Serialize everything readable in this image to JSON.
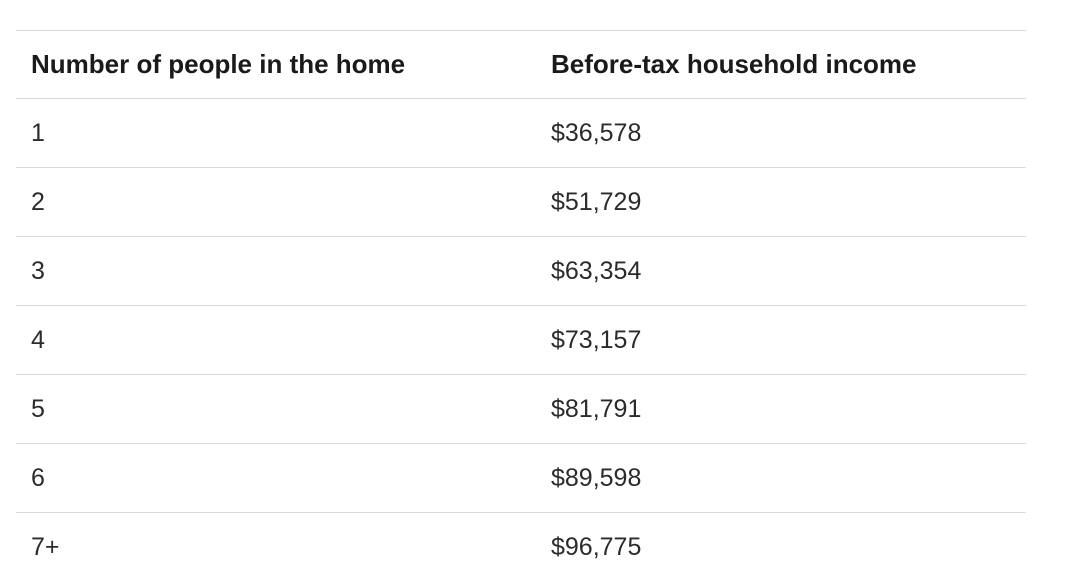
{
  "table": {
    "headers": {
      "people": "Number of people in the home",
      "income": "Before-tax household income"
    },
    "rows": [
      {
        "people": "1",
        "income": "$36,578"
      },
      {
        "people": "2",
        "income": "$51,729"
      },
      {
        "people": "3",
        "income": "$63,354"
      },
      {
        "people": "4",
        "income": "$73,157"
      },
      {
        "people": "5",
        "income": "$81,791"
      },
      {
        "people": "6",
        "income": "$89,598"
      },
      {
        "people": "7+",
        "income": "$96,775"
      }
    ]
  }
}
